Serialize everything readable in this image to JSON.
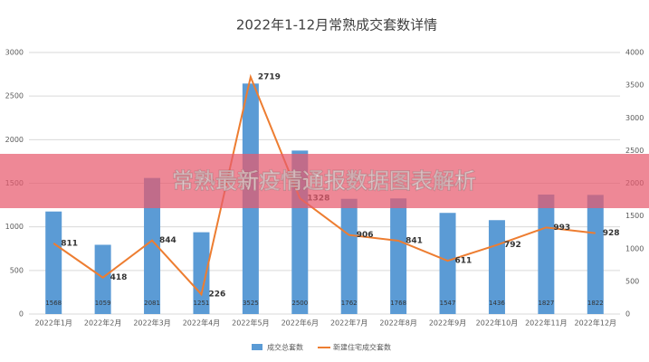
{
  "chart_data": {
    "type": "bar",
    "title": "2022年1-12月常熟成交套数详情",
    "categories": [
      "2022年1月",
      "2022年2月",
      "2022年3月",
      "2022年4月",
      "2022年5月",
      "2022年6月",
      "2022年7月",
      "2022年8月",
      "2022年9月",
      "2022年10月",
      "2022年11月",
      "2022年12月"
    ],
    "series": [
      {
        "name": "成交总套数",
        "type": "bar",
        "axis": "y2",
        "color": "#5b9bd5",
        "values": [
          1568,
          1059,
          2081,
          1251,
          3525,
          2500,
          1762,
          1768,
          1547,
          1436,
          1827,
          1822
        ]
      },
      {
        "name": "新建住宅成交套数",
        "type": "line",
        "color": "#ed7d31",
        "values": [
          811,
          418,
          844,
          226,
          2719,
          1328,
          906,
          841,
          611,
          792,
          993,
          928
        ]
      }
    ],
    "ylim": [
      0,
      3000
    ],
    "yticks": [
      0,
      500,
      1000,
      1500,
      2000,
      2500,
      3000
    ],
    "y2lim": [
      0,
      4000
    ],
    "y2ticks": [
      0,
      500,
      1000,
      1500,
      2000,
      2500,
      3000,
      3500,
      4000
    ],
    "grid": true,
    "legend": "bottom"
  },
  "banner": {
    "text": "常熟最新疫情通报数据图表解析"
  }
}
